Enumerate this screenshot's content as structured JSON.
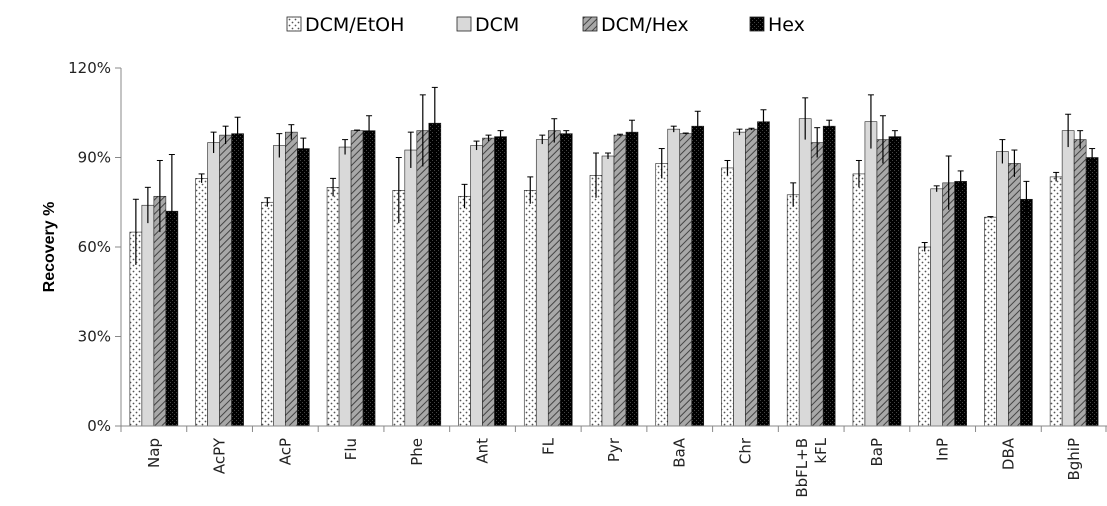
{
  "chart_data": {
    "type": "bar",
    "title": "",
    "xlabel": "",
    "ylabel": "Recovery %",
    "ylim": [
      0,
      1.2
    ],
    "yticks": [
      0,
      0.3,
      0.6,
      0.9,
      1.2
    ],
    "ytick_labels": [
      "0%",
      "30%",
      "60%",
      "90%",
      "120%"
    ],
    "legend_position": "top",
    "grid": false,
    "error_bars": true,
    "categories": [
      "Nap",
      "AcPY",
      "AcP",
      "Flu",
      "Phe",
      "Ant",
      "FL",
      "Pyr",
      "BaA",
      "Chr",
      "BbFL+B\nkFL",
      "BaP",
      "InP",
      "DBA",
      "BghiP"
    ],
    "series": [
      {
        "name": "DCM/EtOH",
        "pattern": "dots",
        "values": [
          0.65,
          0.83,
          0.75,
          0.8,
          0.79,
          0.77,
          0.79,
          0.84,
          0.88,
          0.865,
          0.775,
          0.845,
          0.6,
          0.7,
          0.835
        ],
        "errors": [
          0.11,
          0.015,
          0.015,
          0.03,
          0.11,
          0.04,
          0.045,
          0.075,
          0.05,
          0.025,
          0.04,
          0.045,
          0.015,
          0.002,
          0.015
        ]
      },
      {
        "name": "DCM",
        "pattern": "solid-light",
        "values": [
          0.74,
          0.95,
          0.94,
          0.935,
          0.925,
          0.94,
          0.96,
          0.905,
          0.995,
          0.985,
          1.03,
          1.02,
          0.795,
          0.92,
          0.99
        ]
      },
      {
        "name": "DCM/Hex",
        "pattern": "diagonal",
        "values": [
          0.77,
          0.975,
          0.985,
          0.99,
          0.99,
          0.965,
          0.99,
          0.975,
          0.98,
          0.995,
          0.95,
          0.96,
          0.815,
          0.88,
          0.96
        ]
      },
      {
        "name": "Hex",
        "pattern": "solid-dark",
        "values": [
          0.72,
          0.98,
          0.93,
          0.99,
          1.015,
          0.97,
          0.98,
          0.985,
          1.005,
          1.02,
          1.005,
          0.97,
          0.82,
          0.76,
          0.9
        ]
      }
    ]
  },
  "errors_dcm": [
    0.06,
    0.035,
    0.04,
    0.025,
    0.06,
    0.015,
    0.015,
    0.01,
    0.01,
    0.01,
    0.07,
    0.09,
    0.01,
    0.04,
    0.055
  ],
  "errors_dcmhex": [
    0.12,
    0.03,
    0.025,
    0.002,
    0.12,
    0.01,
    0.04,
    0.003,
    0.002,
    0.003,
    0.05,
    0.08,
    0.09,
    0.045,
    0.03
  ],
  "errors_hex": [
    0.19,
    0.055,
    0.035,
    0.05,
    0.12,
    0.02,
    0.01,
    0.04,
    0.05,
    0.04,
    0.02,
    0.02,
    0.035,
    0.06,
    0.03
  ]
}
